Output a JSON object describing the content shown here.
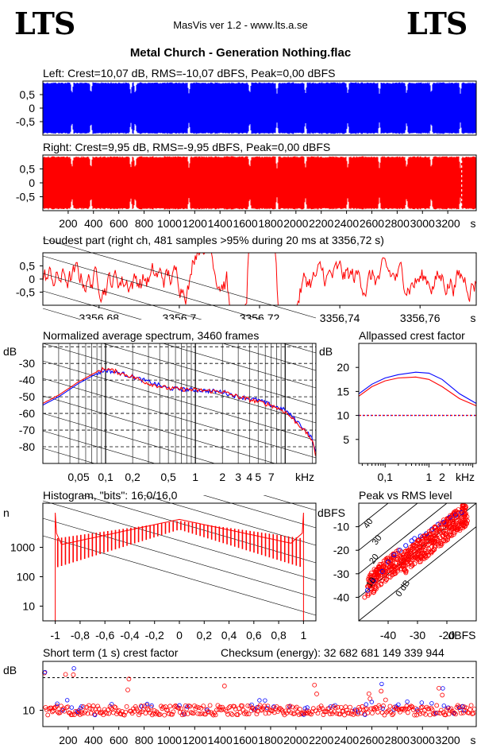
{
  "header": {
    "logo_left": "LTS",
    "logo_right": "LTS",
    "app_title": "MasVis ver 1.2 - www.lts.a.se",
    "file_title": "Metal Church - Generation Nothing.flac"
  },
  "colors": {
    "left": "#0000ff",
    "right": "#ff0000"
  },
  "chart_data": [
    {
      "id": "left",
      "type": "area",
      "title": "Left: Crest=10,07 dB, RMS=-10,07 dBFS, Peak=0,00 dBFS",
      "ylim": [
        -1,
        1
      ],
      "yticks": [
        0.5,
        0,
        -0.5
      ],
      "ytick_labels": [
        "0,5",
        "0",
        "-0,5"
      ],
      "x_range_s": [
        0,
        3425
      ],
      "quiet_points_s": [
        230,
        380,
        695,
        730,
        1155,
        1635,
        1850,
        2075,
        2410,
        2660,
        2875,
        3070,
        3300
      ],
      "color": "#0000ff"
    },
    {
      "id": "right",
      "type": "area",
      "title": "Right: Crest=9,95 dB, RMS=-9,95 dBFS, Peak=0,00 dBFS",
      "ylim": [
        -1,
        1
      ],
      "yticks": [
        0.5,
        0,
        -0.5
      ],
      "ytick_labels": [
        "0,5",
        "0",
        "-0,5"
      ],
      "x_range_s": [
        0,
        3425
      ],
      "xtick_labels": [
        "200",
        "400",
        "600",
        "800",
        "1000",
        "1200",
        "1400",
        "1600",
        "1800",
        "2000",
        "2200",
        "2400",
        "2600",
        "2800",
        "3000",
        "3200",
        "s"
      ],
      "color": "#ff0000"
    },
    {
      "id": "loudest",
      "type": "line",
      "title": "Loudest part (right ch, 481 samples >95% during 20 ms at 3356,72 s)",
      "xlim": [
        3356.666,
        3356.774
      ],
      "ylim": [
        -1,
        1
      ],
      "xticks": [
        3356.68,
        3356.7,
        3356.72,
        3356.74,
        3356.76
      ],
      "xtick_labels": [
        "3356,68",
        "3356,7",
        "3356,72",
        "3356,74",
        "3356,76",
        "s"
      ],
      "ytick_labels": [
        "0,5",
        "0",
        "-0,5"
      ],
      "color": "#ff0000"
    },
    {
      "id": "spectrum",
      "type": "line",
      "title": "Normalized average spectrum, 3460 frames",
      "ylabel": "dB",
      "xlabel": "kHz",
      "log_x": true,
      "xlim": [
        0.02,
        22
      ],
      "ylim": [
        -90,
        -18
      ],
      "ytick_labels": [
        "-30",
        "-40",
        "-50",
        "-60",
        "-70",
        "-80"
      ],
      "xtick_labels": [
        "0,05",
        "0,1",
        "0,2",
        "0,5",
        "1",
        "2",
        "3",
        "4",
        "5",
        "7",
        "kHz"
      ],
      "x": [
        0.02,
        0.03,
        0.05,
        0.08,
        0.1,
        0.15,
        0.2,
        0.3,
        0.5,
        1,
        2,
        3,
        5,
        7,
        10,
        15,
        20,
        22
      ],
      "series": [
        {
          "values": [
            -55,
            -50,
            -42,
            -36,
            -34,
            -36,
            -38,
            -41,
            -45,
            -46,
            -47,
            -50,
            -52,
            -55,
            -58,
            -67,
            -75,
            -85
          ],
          "color": "#0000ff"
        },
        {
          "values": [
            -54,
            -49,
            -41,
            -35,
            -33,
            -36,
            -38,
            -42,
            -45,
            -46,
            -47,
            -50,
            -53,
            -55,
            -59,
            -68,
            -76,
            -87
          ],
          "color": "#ff0000"
        }
      ]
    },
    {
      "id": "allpass",
      "type": "line",
      "title": "Allpassed crest factor",
      "ylabel": "dB",
      "xlabel": "kHz",
      "log_x": true,
      "xlim": [
        0.025,
        12
      ],
      "ylim": [
        0,
        25
      ],
      "ytick_labels": [
        "20",
        "15",
        "10",
        "5"
      ],
      "xtick_labels": [
        "0,1",
        "1",
        "2",
        "kHz"
      ],
      "reference_level": 10,
      "x": [
        0.025,
        0.05,
        0.1,
        0.2,
        0.5,
        1,
        2,
        5,
        12
      ],
      "series": [
        {
          "values": [
            14.5,
            16.5,
            17.8,
            18.5,
            19.0,
            18.8,
            17.5,
            14.5,
            12.5
          ],
          "color": "#0000ff"
        },
        {
          "values": [
            14.0,
            16.0,
            17.2,
            17.8,
            18.0,
            17.5,
            16.0,
            13.5,
            12.0
          ],
          "color": "#ff0000"
        }
      ]
    },
    {
      "id": "histogram",
      "type": "bar",
      "title": "Histogram, \"bits\": 16,0/16,0",
      "ylabel": "n",
      "log_y": true,
      "xlim": [
        -1.1,
        1.1
      ],
      "ytick_labels": [
        "1000",
        "100",
        "10"
      ],
      "xtick_labels": [
        "-1",
        "-0,8",
        "-0,6",
        "-0,4",
        "-0,2",
        "0",
        "0,2",
        "0,4",
        "0,6",
        "0,8",
        "1"
      ],
      "color": "#ff0000"
    },
    {
      "id": "peak_rms",
      "type": "scatter",
      "title": "Peak vs RMS level",
      "ylabel": "dBFS",
      "xlabel": "dBFS",
      "xlim": [
        -50,
        -10
      ],
      "ylim": [
        -50,
        0
      ],
      "ytick_labels": [
        "-10",
        "-20",
        "-30",
        "-40"
      ],
      "xtick_labels": [
        "-40",
        "-30",
        "-20",
        "dBFS"
      ],
      "diagonal_labels": [
        "40",
        "30",
        "20",
        "10",
        "0 dB"
      ],
      "series": [
        {
          "color": "#0000ff",
          "x": [
            -47,
            -45,
            -42,
            -40,
            -38,
            -36,
            -34,
            -32,
            -31,
            -29,
            -27,
            -25,
            -23,
            -21,
            -19,
            -17,
            -15
          ],
          "y": [
            -37,
            -33,
            -29,
            -25,
            -22,
            -20,
            -18,
            -16,
            -15,
            -14,
            -13,
            -11,
            -9,
            -8,
            -6,
            -5,
            -4
          ]
        },
        {
          "color": "#ff0000",
          "x": [
            -48,
            -46,
            -44,
            -41,
            -39,
            -37,
            -35,
            -33,
            -31,
            -30,
            -28,
            -26,
            -24,
            -22,
            -20,
            -18,
            -16,
            -14
          ],
          "y": [
            -40,
            -35,
            -33,
            -29,
            -26,
            -24,
            -22,
            -20,
            -18,
            -16,
            -14,
            -12,
            -10,
            -9,
            -7,
            -5,
            -4,
            -3
          ]
        }
      ]
    },
    {
      "id": "short_crest",
      "type": "scatter",
      "title": "Short term (1 s) crest factor",
      "checksum_label": "Checksum (energy):",
      "checksum_value": "32 682 681 149 339 944",
      "ylabel": "dB",
      "ylim": [
        5,
        25
      ],
      "ytick_labels": [
        "10"
      ],
      "reference_level": 20,
      "xtick_labels": [
        "200",
        "400",
        "600",
        "800",
        "1000",
        "1200",
        "1400",
        "1600",
        "1800",
        "2000",
        "2200",
        "2400",
        "2600",
        "2800",
        "3000",
        "3200",
        "s"
      ],
      "base_level": 10
    }
  ]
}
